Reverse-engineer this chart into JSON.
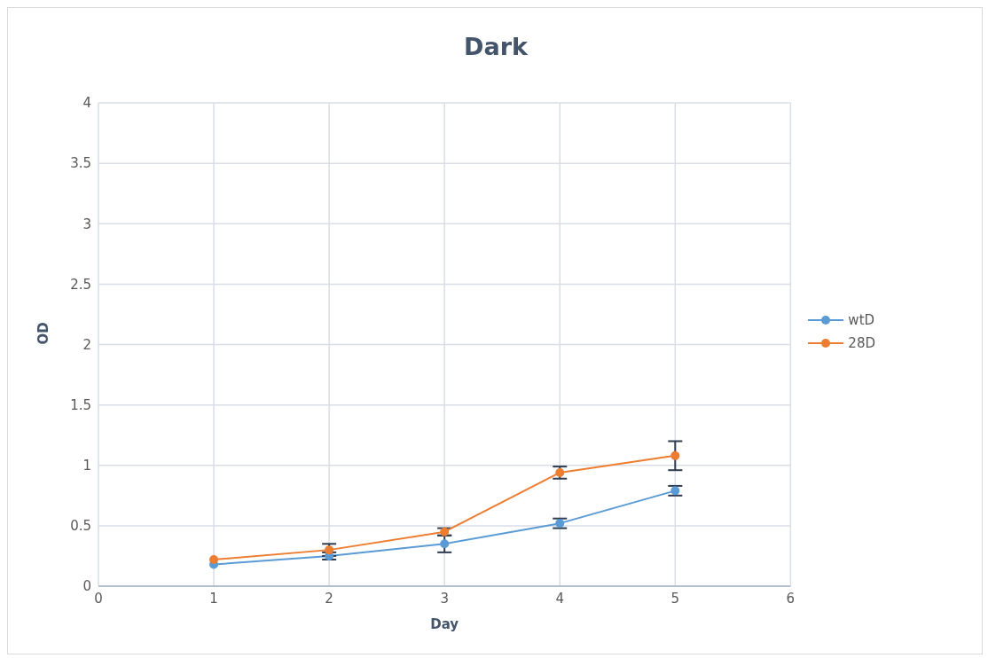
{
  "chart_data": {
    "type": "line",
    "title": "Dark",
    "xlabel": "Day",
    "ylabel": "OD",
    "x": [
      1,
      2,
      3,
      4,
      5
    ],
    "series": [
      {
        "name": "wtD",
        "color": "#5b9bd5",
        "values": [
          0.18,
          0.25,
          0.35,
          0.52,
          0.79
        ],
        "errors": [
          null,
          0.03,
          0.07,
          0.04,
          0.04
        ]
      },
      {
        "name": "28D",
        "color": "#ed7d31",
        "values": [
          0.22,
          0.3,
          0.45,
          0.94,
          1.08
        ],
        "errors": [
          null,
          0.05,
          0.03,
          0.05,
          0.12
        ]
      }
    ],
    "xlim": [
      0,
      6
    ],
    "xticks": [
      0,
      1,
      2,
      3,
      4,
      5,
      6
    ],
    "ylim": [
      0,
      4
    ],
    "yticks": [
      0,
      0.5,
      1,
      1.5,
      2,
      2.5,
      3,
      3.5,
      4
    ],
    "grid": true,
    "legend": "right",
    "marker": "circle",
    "line_style": "solid"
  }
}
